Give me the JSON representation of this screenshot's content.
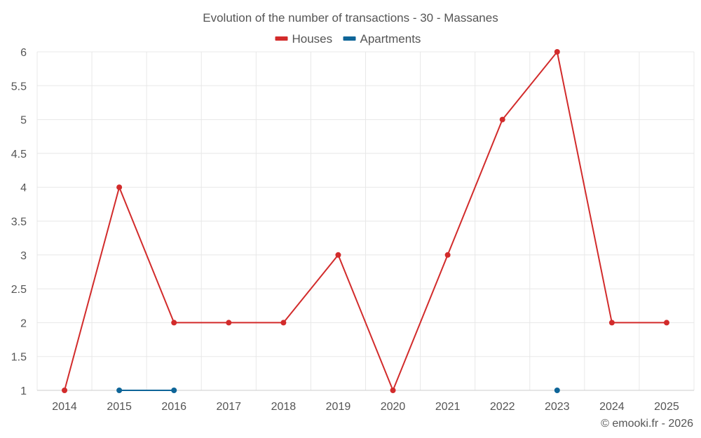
{
  "chart_data": {
    "type": "line",
    "title": "Evolution of the number of transactions - 30 - Massanes",
    "categories": [
      "2014",
      "2015",
      "2016",
      "2017",
      "2018",
      "2019",
      "2020",
      "2021",
      "2022",
      "2023",
      "2024",
      "2025"
    ],
    "y_ticks": [
      "1",
      "1.5",
      "2",
      "2.5",
      "3",
      "3.5",
      "4",
      "4.5",
      "5",
      "5.5",
      "6"
    ],
    "ylim": [
      1,
      6
    ],
    "grid": true,
    "legend_position": "top-center",
    "series": [
      {
        "name": "Houses",
        "color": "#d22b2b",
        "values": [
          1,
          4,
          2,
          2,
          2,
          3,
          1,
          3,
          5,
          6,
          2,
          2
        ]
      },
      {
        "name": "Apartments",
        "color": "#0e6598",
        "values": [
          null,
          1,
          1,
          null,
          null,
          null,
          null,
          null,
          null,
          1,
          null,
          null
        ]
      }
    ]
  },
  "credit": "© emooki.fr - 2026"
}
